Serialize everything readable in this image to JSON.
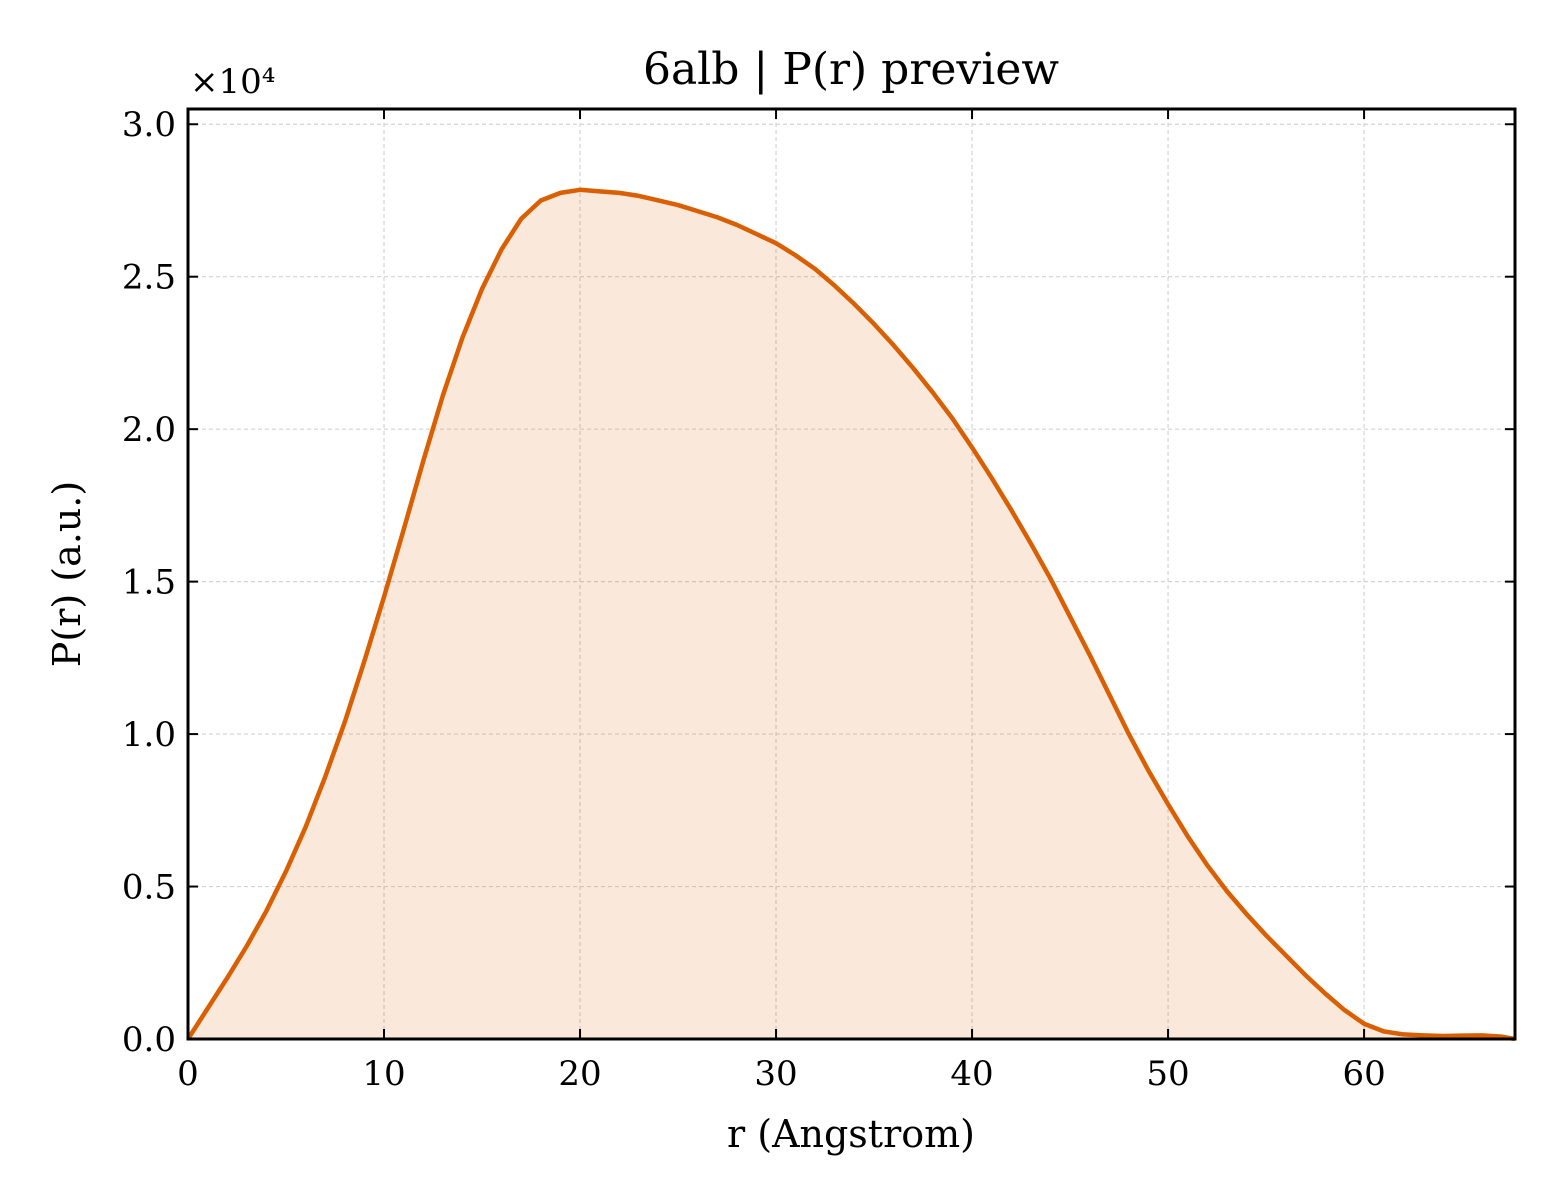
{
  "chart_data": {
    "type": "area",
    "title": "6alb | P(r) preview",
    "xlabel": "r (Angstrom)",
    "ylabel": "P(r) (a.u.)",
    "y_multiplier_label": "×10⁴",
    "y_scale_factor": 10000,
    "xlim": [
      0,
      67.7
    ],
    "ylim": [
      0,
      30500
    ],
    "x_ticks": [
      0,
      10,
      20,
      30,
      40,
      50,
      60
    ],
    "x_tick_labels": [
      "0",
      "10",
      "20",
      "30",
      "40",
      "50",
      "60"
    ],
    "y_ticks": [
      0,
      5000,
      10000,
      15000,
      20000,
      25000,
      30000
    ],
    "y_tick_labels": [
      "0.0",
      "0.5",
      "1.0",
      "1.5",
      "2.0",
      "2.5",
      "3.0"
    ],
    "grid": true,
    "legend": "none",
    "colors": {
      "line": "#d95f02",
      "fill": "#d95f02",
      "fill_opacity": 0.14
    },
    "series": [
      {
        "x": [
          0,
          1,
          2,
          3,
          4,
          5,
          6,
          7,
          8,
          9,
          10,
          11,
          12,
          13,
          14,
          15,
          16,
          17,
          18,
          19,
          20,
          21,
          22,
          23,
          24,
          25,
          26,
          27,
          28,
          29,
          30,
          31,
          32,
          33,
          34,
          35,
          36,
          37,
          38,
          39,
          40,
          41,
          42,
          43,
          44,
          45,
          46,
          47,
          48,
          49,
          50,
          51,
          52,
          53,
          54,
          55,
          56,
          57,
          58,
          59,
          60,
          61,
          62,
          63,
          64,
          65,
          66,
          67,
          67.7
        ],
        "y": [
          0,
          1000,
          2000,
          3050,
          4200,
          5500,
          6950,
          8600,
          10400,
          12400,
          14500,
          16700,
          18950,
          21100,
          23000,
          24600,
          25900,
          26900,
          27500,
          27750,
          27850,
          27800,
          27750,
          27650,
          27500,
          27350,
          27150,
          26950,
          26700,
          26400,
          26100,
          25700,
          25250,
          24700,
          24100,
          23450,
          22750,
          22000,
          21200,
          20350,
          19400,
          18400,
          17350,
          16250,
          15100,
          13850,
          12600,
          11300,
          10000,
          8800,
          7700,
          6650,
          5700,
          4850,
          4100,
          3400,
          2750,
          2100,
          1500,
          950,
          500,
          250,
          150,
          120,
          100,
          110,
          120,
          80,
          0
        ]
      }
    ]
  }
}
